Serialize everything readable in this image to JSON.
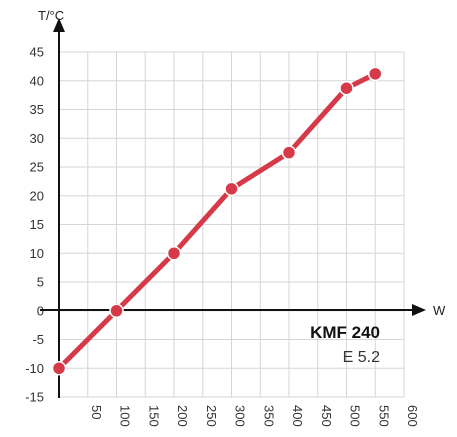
{
  "chart_data": {
    "type": "line",
    "xlabel": "W",
    "ylabel": "T/°C",
    "x": [
      0,
      100,
      200,
      300,
      400,
      500,
      550
    ],
    "y": [
      -10,
      0,
      10,
      21.2,
      27.5,
      38.7,
      41.2
    ],
    "xlim": [
      0,
      600
    ],
    "ylim": [
      -15,
      45
    ],
    "xticks": [
      "50",
      "100",
      "150",
      "200",
      "250",
      "300",
      "350",
      "400",
      "450",
      "500",
      "550",
      "600"
    ],
    "yticks": [
      "45",
      "40",
      "35",
      "30",
      "25",
      "20",
      "15",
      "10",
      "5",
      "0",
      "-5",
      "-10",
      "-15"
    ],
    "grid": true,
    "line_color": "#d63a48",
    "annotation": {
      "model": "KMF 240",
      "sub": "E 5.2"
    }
  }
}
